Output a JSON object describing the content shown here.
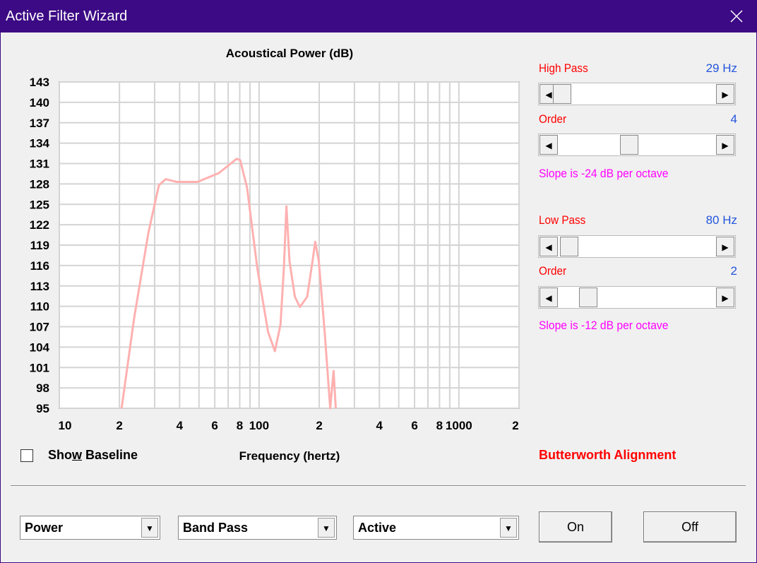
{
  "window": {
    "title": "Active Filter Wizard"
  },
  "chart_data": {
    "type": "line",
    "title": "Acoustical Power (dB)",
    "x_label": "Frequency (hertz)",
    "x": [
      20.5,
      23.7,
      27.9,
      31.5,
      34.1,
      38.6,
      49.2,
      62.9,
      77.2,
      80.4,
      87,
      98,
      111,
      120,
      128,
      133,
      137,
      142,
      151,
      160,
      174,
      185,
      191,
      199,
      213,
      227,
      236,
      242
    ],
    "series": [
      {
        "color": "#ffb0b0",
        "values": [
          95,
          108.3,
          120.8,
          127.8,
          128.7,
          128.3,
          128.3,
          129.6,
          131.7,
          131.5,
          127.5,
          115.6,
          106.2,
          103.4,
          107.3,
          115.6,
          124.7,
          116.6,
          111.4,
          109.9,
          111.4,
          116.6,
          119.5,
          116.6,
          106.2,
          95,
          100.5,
          95
        ]
      }
    ],
    "xscale": "log",
    "xlim": [
      10,
      2000
    ],
    "ylim": [
      95,
      143
    ],
    "xticks": [
      10,
      {
        "value": 20,
        "label": "2"
      },
      {
        "value": 40,
        "label": "4"
      },
      {
        "value": 60,
        "label": "6"
      },
      {
        "value": 80,
        "label": "8"
      },
      100,
      {
        "value": 200,
        "label": "2"
      },
      {
        "value": 400,
        "label": "4"
      },
      {
        "value": 600,
        "label": "6"
      },
      {
        "value": 800,
        "label": "8"
      },
      1000,
      {
        "value": 2000,
        "label": "2"
      }
    ],
    "xminor": [
      30,
      50,
      70,
      90,
      300,
      500,
      700,
      900
    ],
    "yticks": [
      95,
      98,
      101,
      104,
      107,
      110,
      113,
      116,
      119,
      122,
      125,
      128,
      131,
      134,
      137,
      140,
      143
    ],
    "grid": true
  },
  "controls": {
    "high_pass": {
      "label": "High Pass",
      "value": "29 Hz"
    },
    "high_order": {
      "label": "Order",
      "value": "4"
    },
    "high_slope": "Slope is -24 dB per octave",
    "low_pass": {
      "label": "Low Pass",
      "value": "80 Hz"
    },
    "low_order": {
      "label": "Order",
      "value": "2"
    },
    "low_slope": "Slope is -12 dB per octave",
    "alignment": "Butterworth Alignment",
    "show_baseline": {
      "before": "Sho",
      "key": "w",
      "after": " Baseline"
    },
    "dropdowns": [
      "Power",
      "Band Pass",
      "Active"
    ],
    "buttons": [
      "On",
      "Off"
    ]
  }
}
